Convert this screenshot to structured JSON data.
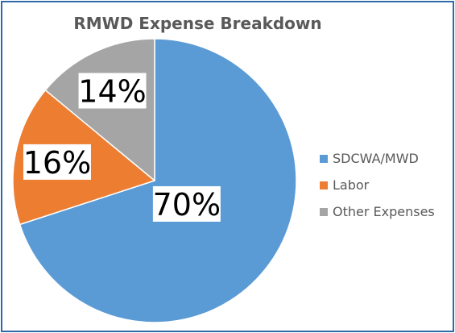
{
  "chart_data": {
    "type": "pie",
    "title": "RMWD Expense Breakdown",
    "slices": [
      {
        "label": "SDCWA/MWD",
        "value": 70,
        "data_label": "70%",
        "color": "#5b9bd5"
      },
      {
        "label": "Labor",
        "value": 16,
        "data_label": "16%",
        "color": "#ed7d31"
      },
      {
        "label": "Other Expenses",
        "value": 14,
        "data_label": "14%",
        "color": "#a5a5a5"
      }
    ],
    "start_angle": "12 o'clock",
    "direction": "clockwise",
    "legend_position": "right",
    "frame_color": "#2e6aa8"
  }
}
